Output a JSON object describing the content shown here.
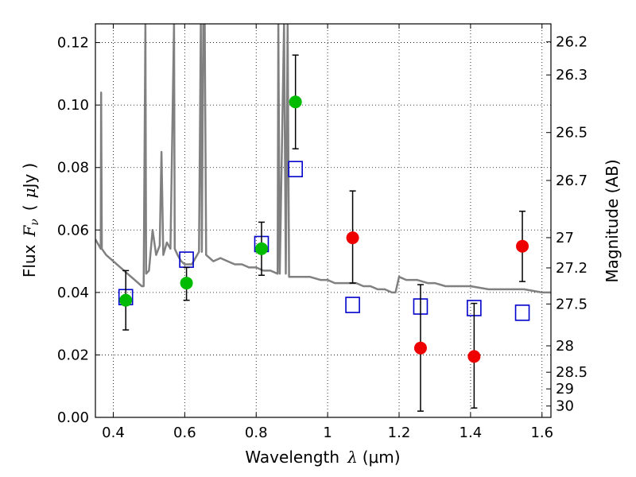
{
  "chart_data": {
    "type": "scatter",
    "xlabel_text": "Wavelength",
    "xlabel_lambda": "λ",
    "xlabel_unit": "(μm)",
    "ylabel_flux": "Flux",
    "ylabel_F": "F",
    "ylabel_nu": "ν",
    "ylabel_unit_open": "(",
    "ylabel_mu": "μ",
    "ylabel_unit_jy": "Jy",
    "ylabel_unit_close": ")",
    "y2label": "Magnitude (AB)",
    "xlim": [
      0.35,
      1.625
    ],
    "ylim": [
      0.0,
      0.126
    ],
    "grid": true,
    "x_ticks": [
      {
        "value": 0.4,
        "label": "0.4"
      },
      {
        "value": 0.6,
        "label": "0.6"
      },
      {
        "value": 0.8,
        "label": "0.8"
      },
      {
        "value": 1.0,
        "label": "1"
      },
      {
        "value": 1.2,
        "label": "1.2"
      },
      {
        "value": 1.4,
        "label": "1.4"
      },
      {
        "value": 1.6,
        "label": "1.6"
      }
    ],
    "y_ticks": [
      {
        "value": 0.0,
        "label": "0.00"
      },
      {
        "value": 0.02,
        "label": "0.02"
      },
      {
        "value": 0.04,
        "label": "0.04"
      },
      {
        "value": 0.06,
        "label": "0.06"
      },
      {
        "value": 0.08,
        "label": "0.08"
      },
      {
        "value": 0.1,
        "label": "0.10"
      },
      {
        "value": 0.12,
        "label": "0.12"
      }
    ],
    "mag_ticks": [
      {
        "value": 26.2,
        "label": "26.2"
      },
      {
        "value": 26.3,
        "label": "26.3"
      },
      {
        "value": 26.5,
        "label": "26.5"
      },
      {
        "value": 26.7,
        "label": "26.7"
      },
      {
        "value": 27.0,
        "label": "27"
      },
      {
        "value": 27.2,
        "label": "27.2"
      },
      {
        "value": 27.5,
        "label": "27.5"
      },
      {
        "value": 28.0,
        "label": "28"
      },
      {
        "value": 28.5,
        "label": "28.5"
      },
      {
        "value": 29.0,
        "label": "29"
      },
      {
        "value": 30.0,
        "label": "30"
      }
    ],
    "series": [
      {
        "kind": "line",
        "color": "#808080",
        "points": [
          [
            0.35,
            0.057
          ],
          [
            0.36,
            0.055
          ],
          [
            0.365,
            0.054
          ],
          [
            0.366,
            0.104
          ],
          [
            0.368,
            0.054
          ],
          [
            0.38,
            0.052
          ],
          [
            0.4,
            0.05
          ],
          [
            0.42,
            0.048
          ],
          [
            0.44,
            0.046
          ],
          [
            0.46,
            0.044
          ],
          [
            0.48,
            0.042
          ],
          [
            0.485,
            0.042
          ],
          [
            0.49,
            0.126
          ],
          [
            0.492,
            0.046
          ],
          [
            0.5,
            0.047
          ],
          [
            0.51,
            0.06
          ],
          [
            0.52,
            0.052
          ],
          [
            0.53,
            0.055
          ],
          [
            0.535,
            0.085
          ],
          [
            0.54,
            0.052
          ],
          [
            0.55,
            0.056
          ],
          [
            0.56,
            0.054
          ],
          [
            0.57,
            0.126
          ],
          [
            0.572,
            0.054
          ],
          [
            0.58,
            0.052
          ],
          [
            0.59,
            0.05
          ],
          [
            0.6,
            0.049
          ],
          [
            0.62,
            0.049
          ],
          [
            0.64,
            0.053
          ],
          [
            0.645,
            0.126
          ],
          [
            0.648,
            0.053
          ],
          [
            0.652,
            0.126
          ],
          [
            0.656,
            0.126
          ],
          [
            0.66,
            0.052
          ],
          [
            0.68,
            0.05
          ],
          [
            0.7,
            0.051
          ],
          [
            0.72,
            0.05
          ],
          [
            0.74,
            0.049
          ],
          [
            0.76,
            0.049
          ],
          [
            0.78,
            0.048
          ],
          [
            0.8,
            0.048
          ],
          [
            0.82,
            0.047
          ],
          [
            0.84,
            0.047
          ],
          [
            0.86,
            0.046
          ],
          [
            0.862,
            0.126
          ],
          [
            0.866,
            0.046
          ],
          [
            0.878,
            0.126
          ],
          [
            0.883,
            0.046
          ],
          [
            0.888,
            0.126
          ],
          [
            0.892,
            0.045
          ],
          [
            0.92,
            0.045
          ],
          [
            0.95,
            0.045
          ],
          [
            0.98,
            0.044
          ],
          [
            1.0,
            0.044
          ],
          [
            1.02,
            0.043
          ],
          [
            1.05,
            0.043
          ],
          [
            1.08,
            0.043
          ],
          [
            1.1,
            0.042
          ],
          [
            1.12,
            0.042
          ],
          [
            1.14,
            0.041
          ],
          [
            1.16,
            0.041
          ],
          [
            1.18,
            0.04
          ],
          [
            1.19,
            0.04
          ],
          [
            1.2,
            0.045
          ],
          [
            1.22,
            0.044
          ],
          [
            1.25,
            0.044
          ],
          [
            1.28,
            0.043
          ],
          [
            1.3,
            0.043
          ],
          [
            1.33,
            0.042
          ],
          [
            1.36,
            0.042
          ],
          [
            1.4,
            0.042
          ],
          [
            1.45,
            0.041
          ],
          [
            1.5,
            0.041
          ],
          [
            1.55,
            0.041
          ],
          [
            1.6,
            0.04
          ],
          [
            1.625,
            0.04
          ]
        ]
      },
      {
        "kind": "square",
        "color": "#0000cc",
        "points": [
          [
            0.435,
            0.0385
          ],
          [
            0.605,
            0.0505
          ],
          [
            0.815,
            0.0555
          ],
          [
            0.91,
            0.0795
          ],
          [
            1.07,
            0.036
          ],
          [
            1.26,
            0.0355
          ],
          [
            1.41,
            0.035
          ],
          [
            1.545,
            0.0335
          ]
        ]
      },
      {
        "kind": "circle",
        "color": "#00bb00",
        "points": [
          {
            "x": 0.435,
            "y": 0.0375,
            "lo": 0.028,
            "hi": 0.047
          },
          {
            "x": 0.605,
            "y": 0.043,
            "lo": 0.0375,
            "hi": 0.048
          },
          {
            "x": 0.815,
            "y": 0.054,
            "lo": 0.0455,
            "hi": 0.0625
          },
          {
            "x": 0.91,
            "y": 0.101,
            "lo": 0.086,
            "hi": 0.116
          }
        ]
      },
      {
        "kind": "circle",
        "color": "#ee0000",
        "points": [
          {
            "x": 1.07,
            "y": 0.0575,
            "lo": 0.043,
            "hi": 0.0725
          },
          {
            "x": 1.26,
            "y": 0.0222,
            "lo": 0.002,
            "hi": 0.0425
          },
          {
            "x": 1.41,
            "y": 0.0195,
            "lo": 0.003,
            "hi": 0.0365
          },
          {
            "x": 1.545,
            "y": 0.0548,
            "lo": 0.0435,
            "hi": 0.066
          }
        ]
      }
    ]
  }
}
